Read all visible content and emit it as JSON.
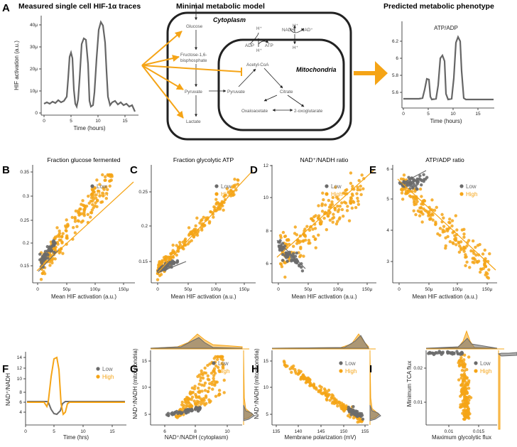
{
  "colors": {
    "low": "#6b6b6b",
    "high": "#f5a416",
    "trace": "#666666"
  },
  "panelA": {
    "label": "A",
    "left_title": "Measured single cell HIF-1α traces",
    "middle_title": "Minimal metabolic model",
    "right_title": "Predicted metabolic phenotype",
    "left_ylabel": "HIF activation (a.u.)",
    "left_xlabel": "Time (hours)",
    "left_yticks": [
      "0",
      "10μ",
      "20μ",
      "30μ",
      "40μ"
    ],
    "left_xticks": [
      "0",
      "5",
      "10",
      "15"
    ],
    "right_inner_title": "ATP/ADP",
    "right_xlabel": "Time (hours)",
    "right_yticks": [
      "5.6",
      "5.8",
      "6",
      "6.2"
    ],
    "right_xticks": [
      "0",
      "5",
      "10",
      "15"
    ],
    "cytoplasm": "Cytoplasm",
    "mitochondria": "Mitochondria",
    "metabolites": {
      "glucose": "Glucose",
      "fructose1": "Fructose-1,6-",
      "fructose2": "bisphosphate",
      "pyruvate_c": "Pyruvate",
      "lactate": "Lactate",
      "pyruvate_m": "Pyruvate",
      "acetyl": "Acetyl-CoA",
      "citrate": "Citrate",
      "oxalo": "Oxaloacetate",
      "oxoglut": "2-oxoglutarate",
      "adp": "ADP",
      "atp": "ATP",
      "nadh": "NADH",
      "nad": "NAD⁺",
      "h1": "H⁺",
      "h2": "H⁺",
      "h3": "H⁺",
      "h4": "H⁺"
    }
  },
  "panels": {
    "B": {
      "label": "B",
      "title": "Fraction glucose fermented",
      "xlabel": "Mean HIF activation (a.u.)",
      "yticks": [
        "0.15",
        "0.2",
        "0.25",
        "0.3",
        "0.35"
      ],
      "xticks": [
        "0",
        "50μ",
        "100μ",
        "150μ"
      ]
    },
    "C": {
      "label": "C",
      "title": "Fraction glycolytic ATP",
      "xlabel": "Mean HIF activation (a.u.)",
      "yticks": [
        "0.15",
        "0.2",
        "0.25"
      ],
      "xticks": [
        "0",
        "50μ",
        "100μ",
        "150μ"
      ]
    },
    "D": {
      "label": "D",
      "title": "NAD⁺/NADH ratio",
      "xlabel": "Mean HIF activation (a.u.)",
      "yticks": [
        "6",
        "8",
        "10",
        "12"
      ],
      "xticks": [
        "0",
        "50μ",
        "100μ",
        "150μ"
      ]
    },
    "E": {
      "label": "E",
      "title": "ATP/ADP ratio",
      "xlabel": "Mean HIF activation (a.u.)",
      "yticks": [
        "3",
        "4",
        "5",
        "6"
      ],
      "xticks": [
        "0",
        "50μ",
        "100μ",
        "150μ"
      ]
    },
    "F": {
      "label": "F",
      "ylabel": "NAD⁺/NADH",
      "xlabel": "Time (hrs)",
      "yticks": [
        "4",
        "6",
        "8",
        "10",
        "12",
        "14"
      ],
      "xticks": [
        "0",
        "5",
        "10",
        "15"
      ]
    },
    "G": {
      "label": "G",
      "ylabel": "NAD⁺/NADH (mitochondria)",
      "xlabel": "NAD⁺/NADH (cytoplasm)",
      "yticks": [
        "5",
        "10",
        "15"
      ],
      "xticks": [
        "6",
        "8",
        "10"
      ]
    },
    "H": {
      "label": "H",
      "ylabel": "NAD⁺/NADH (mitochondria)",
      "xlabel": "Membrane polarization (mV)",
      "yticks": [
        "5",
        "10",
        "15"
      ],
      "xticks": [
        "135",
        "140",
        "145",
        "150",
        "155"
      ]
    },
    "I": {
      "label": "I",
      "ylabel": "Minimum TCA flux",
      "xlabel": "Maximum glycolytic flux",
      "yticks": [
        "0.01",
        "0.02"
      ],
      "xticks": [
        "0.01",
        "0.015"
      ]
    }
  },
  "legend": {
    "low": "Low",
    "high": "High"
  }
}
